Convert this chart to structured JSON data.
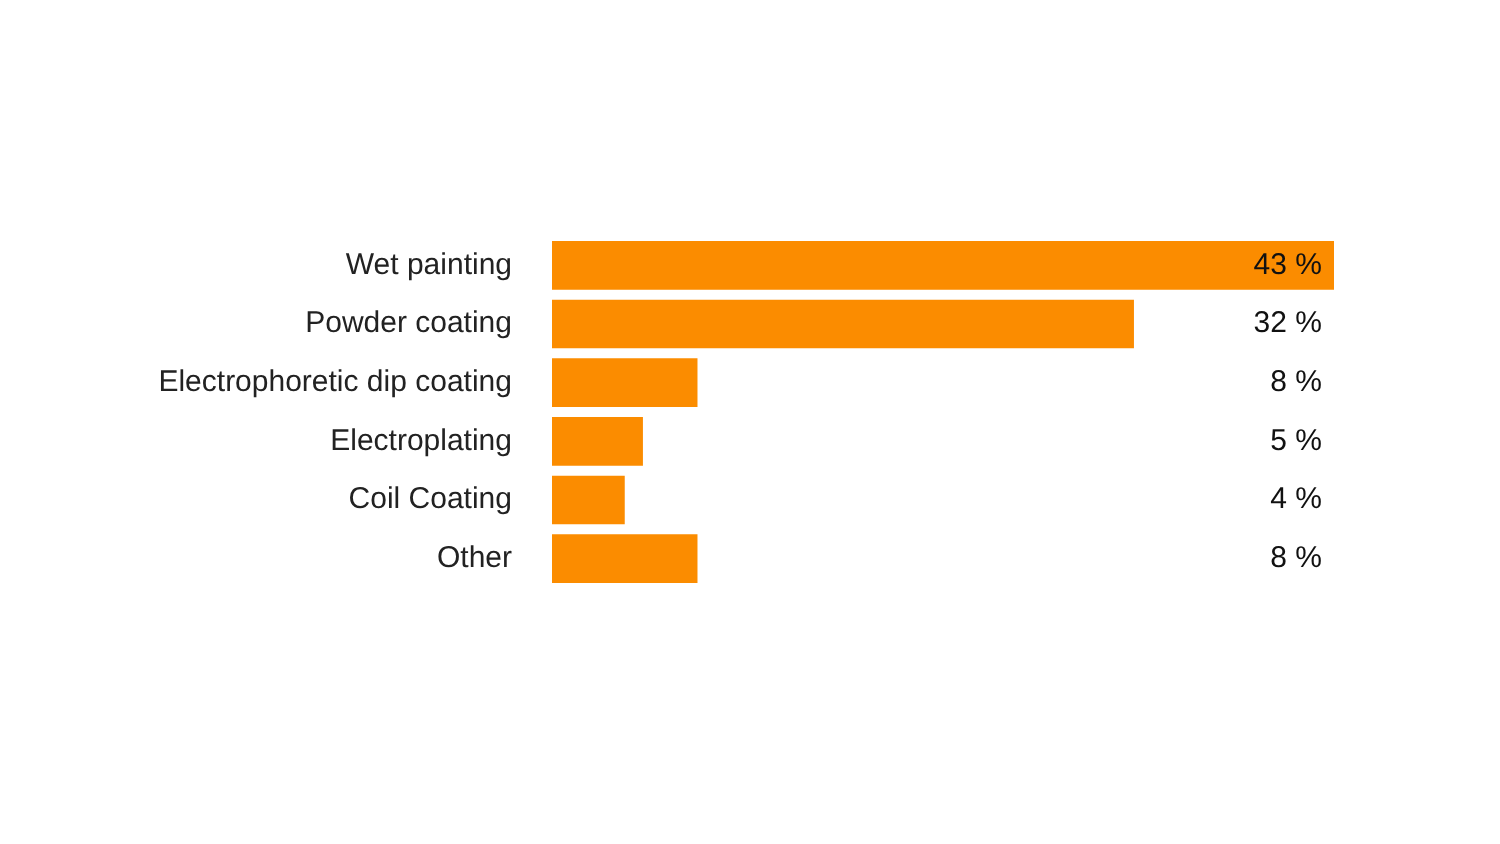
{
  "chart_data": {
    "type": "bar",
    "orientation": "horizontal",
    "categories": [
      "Wet painting",
      "Powder coating",
      "Electrophoretic dip coating",
      "Electroplating",
      "Coil Coating",
      "Other"
    ],
    "values": [
      43,
      32,
      8,
      5,
      4,
      8
    ],
    "value_labels": [
      "43 %",
      "32 %",
      "8 %",
      "5 %",
      "4 %",
      "8 %"
    ],
    "color": "#fb8c00"
  }
}
